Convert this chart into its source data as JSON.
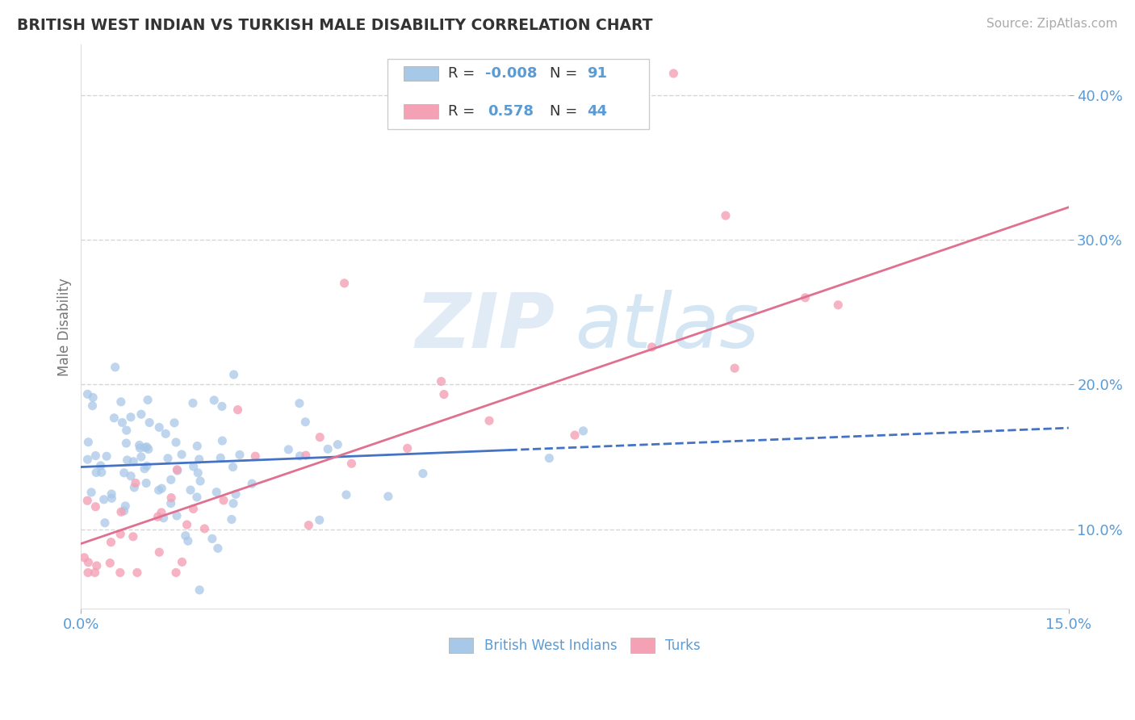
{
  "title": "BRITISH WEST INDIAN VS TURKISH MALE DISABILITY CORRELATION CHART",
  "source": "Source: ZipAtlas.com",
  "ylabel": "Male Disability",
  "xlim": [
    0.0,
    0.15
  ],
  "ylim": [
    0.045,
    0.435
  ],
  "yticks": [
    0.1,
    0.2,
    0.3,
    0.4
  ],
  "yticklabels": [
    "10.0%",
    "20.0%",
    "30.0%",
    "40.0%"
  ],
  "xtick_positions": [
    0.0,
    0.15
  ],
  "xticklabels": [
    "0.0%",
    "15.0%"
  ],
  "background_color": "#ffffff",
  "grid_color": "#cccccc",
  "title_color": "#333333",
  "axis_color": "#5b9bd5",
  "text_color": "#333333",
  "series1_color": "#a8c8e8",
  "series2_color": "#f4a0b5",
  "trend1_color": "#4472c4",
  "trend2_color": "#e07090",
  "watermark_color": "#dce8f5",
  "blue_line_solid_end": 0.065,
  "blue_line_intercept": 0.143,
  "blue_line_slope": 0.18,
  "pink_line_intercept": 0.09,
  "pink_line_slope": 1.55
}
